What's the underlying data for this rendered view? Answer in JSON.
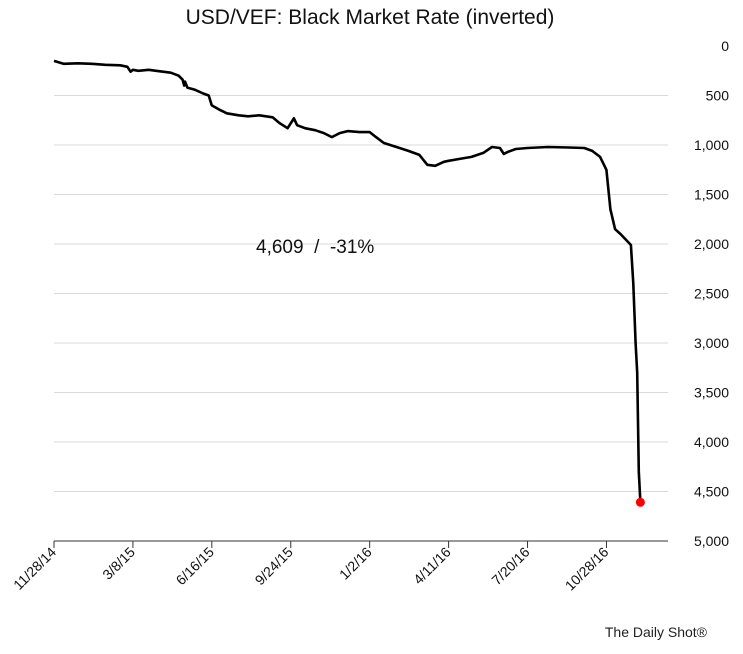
{
  "chart_data": {
    "type": "line",
    "title": "USD/VEF: Black Market Rate (inverted)",
    "xlabel": "",
    "ylabel": "",
    "y_inverted": true,
    "ylim": [
      0,
      5000
    ],
    "xlim": [
      "2014-11-28",
      "2017-01-14"
    ],
    "y_ticks": [
      "0",
      "500",
      "1,000",
      "1,500",
      "2,000",
      "2,500",
      "3,000",
      "3,500",
      "4,000",
      "4,500",
      "5,000"
    ],
    "x_ticks": [
      "11/28/14",
      "3/8/15",
      "6/16/15",
      "9/24/15",
      "1/2/16",
      "4/11/16",
      "7/20/16",
      "10/28/16"
    ],
    "grid": true,
    "line_color": "#000000",
    "marker_color": "#ff0000",
    "annotation": "4,609  /  -31%",
    "series": [
      {
        "points": [
          [
            "2014-11-28",
            150
          ],
          [
            "2014-12-10",
            180
          ],
          [
            "2014-12-28",
            175
          ],
          [
            "2015-01-15",
            180
          ],
          [
            "2015-02-01",
            190
          ],
          [
            "2015-02-20",
            195
          ],
          [
            "2015-03-01",
            210
          ],
          [
            "2015-03-05",
            260
          ],
          [
            "2015-03-08",
            240
          ],
          [
            "2015-03-15",
            250
          ],
          [
            "2015-03-28",
            240
          ],
          [
            "2015-04-10",
            255
          ],
          [
            "2015-04-25",
            270
          ],
          [
            "2015-05-05",
            300
          ],
          [
            "2015-05-10",
            340
          ],
          [
            "2015-05-12",
            400
          ],
          [
            "2015-05-13",
            360
          ],
          [
            "2015-05-16",
            420
          ],
          [
            "2015-05-25",
            440
          ],
          [
            "2015-06-05",
            480
          ],
          [
            "2015-06-12",
            500
          ],
          [
            "2015-06-16",
            600
          ],
          [
            "2015-06-25",
            640
          ],
          [
            "2015-07-05",
            680
          ],
          [
            "2015-07-20",
            700
          ],
          [
            "2015-08-01",
            710
          ],
          [
            "2015-08-15",
            700
          ],
          [
            "2015-09-01",
            720
          ],
          [
            "2015-09-10",
            780
          ],
          [
            "2015-09-20",
            830
          ],
          [
            "2015-09-24",
            780
          ],
          [
            "2015-09-28",
            730
          ],
          [
            "2015-10-02",
            800
          ],
          [
            "2015-10-12",
            830
          ],
          [
            "2015-10-25",
            850
          ],
          [
            "2015-11-05",
            880
          ],
          [
            "2015-11-15",
            920
          ],
          [
            "2015-11-25",
            880
          ],
          [
            "2015-12-05",
            860
          ],
          [
            "2015-12-20",
            870
          ],
          [
            "2016-01-02",
            870
          ],
          [
            "2016-01-10",
            920
          ],
          [
            "2016-01-20",
            980
          ],
          [
            "2016-02-05",
            1020
          ],
          [
            "2016-02-20",
            1060
          ],
          [
            "2016-03-05",
            1100
          ],
          [
            "2016-03-15",
            1200
          ],
          [
            "2016-03-25",
            1210
          ],
          [
            "2016-04-05",
            1170
          ],
          [
            "2016-04-11",
            1160
          ],
          [
            "2016-04-25",
            1140
          ],
          [
            "2016-05-10",
            1120
          ],
          [
            "2016-05-25",
            1080
          ],
          [
            "2016-06-05",
            1020
          ],
          [
            "2016-06-15",
            1030
          ],
          [
            "2016-06-20",
            1090
          ],
          [
            "2016-06-25",
            1070
          ],
          [
            "2016-07-05",
            1040
          ],
          [
            "2016-07-20",
            1030
          ],
          [
            "2016-08-15",
            1020
          ],
          [
            "2016-09-10",
            1025
          ],
          [
            "2016-09-30",
            1030
          ],
          [
            "2016-10-10",
            1060
          ],
          [
            "2016-10-20",
            1120
          ],
          [
            "2016-10-28",
            1250
          ],
          [
            "2016-11-02",
            1650
          ],
          [
            "2016-11-08",
            1850
          ],
          [
            "2016-11-15",
            1900
          ],
          [
            "2016-11-22",
            1960
          ],
          [
            "2016-11-28",
            2010
          ],
          [
            "2016-12-01",
            2400
          ],
          [
            "2016-12-04",
            3000
          ],
          [
            "2016-12-06",
            3300
          ],
          [
            "2016-12-08",
            4300
          ],
          [
            "2016-12-10",
            4609
          ]
        ]
      }
    ],
    "last_point": [
      "2016-12-10",
      4609
    ]
  },
  "footer": {
    "credit": "The Daily Shot®"
  }
}
